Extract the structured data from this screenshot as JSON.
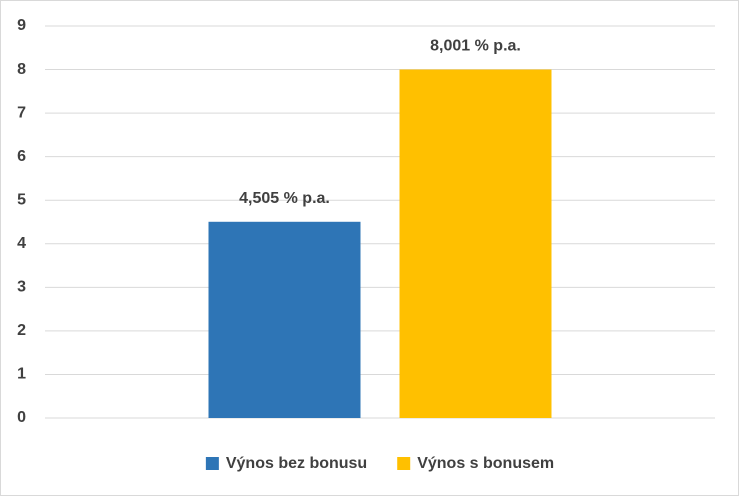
{
  "chart_data": {
    "type": "bar",
    "categories": [
      null
    ],
    "series": [
      {
        "name": "Výnos bez bonusu",
        "color": "#2e75b6",
        "values": [
          4.505
        ],
        "value_labels": [
          "4,505 % p.a."
        ]
      },
      {
        "name": "Výnos s bonusem",
        "color": "#ffc000",
        "values": [
          8.001
        ],
        "value_labels": [
          "8,001 % p.a."
        ]
      }
    ],
    "ylim": [
      0,
      9
    ],
    "yticks": [
      0,
      1,
      2,
      3,
      4,
      5,
      6,
      7,
      8,
      9
    ],
    "grid": true,
    "legend": "bottom"
  }
}
